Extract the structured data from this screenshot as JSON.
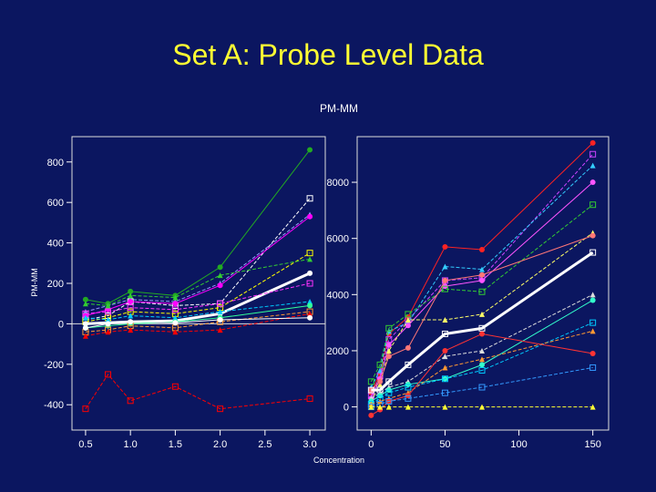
{
  "slide": {
    "title": "Set A: Probe Level Data",
    "subtitle": "PM-MM",
    "xlabel": "Concentration",
    "ylabel": "PM-MM"
  },
  "chart_data": [
    {
      "type": "line",
      "title": "",
      "xlabel": "",
      "ylabel": "PM-MM",
      "x": [
        0.5,
        0.75,
        1.0,
        1.5,
        2.0,
        3.0
      ],
      "xticks": [
        "0.5",
        "1.0",
        "1.5",
        "2.0",
        "2.5",
        "3.0"
      ],
      "yticks": [
        "-400",
        "-200",
        "0",
        "200",
        "400",
        "600",
        "800"
      ],
      "xlim": [
        0.45,
        3.05
      ],
      "ylim": [
        -480,
        880
      ],
      "series": [
        {
          "color": "#22aa22",
          "values": [
            120,
            100,
            160,
            140,
            280,
            860
          ]
        },
        {
          "color": "#ffffff",
          "values": [
            20,
            40,
            110,
            90,
            100,
            620
          ]
        },
        {
          "color": "#9999ff",
          "values": [
            60,
            90,
            120,
            110,
            200,
            540
          ]
        },
        {
          "color": "#ff00ff",
          "values": [
            40,
            70,
            110,
            100,
            190,
            530
          ]
        },
        {
          "color": "#ffff00",
          "values": [
            10,
            30,
            60,
            50,
            80,
            350
          ]
        },
        {
          "color": "#33cc33",
          "values": [
            100,
            90,
            140,
            130,
            240,
            320
          ]
        },
        {
          "color": "#ffffff",
          "values": [
            0,
            5,
            10,
            15,
            50,
            250
          ]
        },
        {
          "color": "#ff33ff",
          "values": [
            50,
            60,
            80,
            70,
            100,
            200
          ]
        },
        {
          "color": "#00ccff",
          "values": [
            30,
            20,
            40,
            30,
            60,
            110
          ]
        },
        {
          "color": "#33ff99",
          "values": [
            -20,
            -10,
            0,
            10,
            30,
            90
          ]
        },
        {
          "color": "#ff9933",
          "values": [
            -40,
            -30,
            -10,
            -20,
            10,
            60
          ]
        },
        {
          "color": "#ff0000",
          "values": [
            -60,
            -40,
            -30,
            -40,
            -30,
            50
          ]
        },
        {
          "color": "#ffffff",
          "values": [
            -20,
            0,
            10,
            5,
            20,
            30
          ]
        },
        {
          "color": "#ff0000",
          "values": [
            -420,
            -250,
            -380,
            -310,
            -420,
            -370
          ]
        }
      ]
    },
    {
      "type": "line",
      "title": "",
      "xlabel": "Concentration",
      "ylabel": "",
      "x": [
        0,
        6,
        12,
        25,
        50,
        75,
        150
      ],
      "xticks": [
        "0",
        "50",
        "100",
        "150"
      ],
      "yticks": [
        "0",
        "2000",
        "4000",
        "6000",
        "8000"
      ],
      "xlim": [
        -7,
        157
      ],
      "ylim": [
        -500,
        9300
      ],
      "series": [
        {
          "color": "#ff2222",
          "values": [
            500,
            1200,
            2600,
            3200,
            5700,
            5600,
            9400
          ]
        },
        {
          "color": "#cc44ff",
          "values": [
            400,
            1100,
            2400,
            3100,
            4500,
            4600,
            9000
          ]
        },
        {
          "color": "#33ccff",
          "values": [
            700,
            1300,
            2700,
            3000,
            5000,
            4900,
            8600
          ]
        },
        {
          "color": "#ff55ff",
          "values": [
            300,
            1000,
            2200,
            2900,
            4300,
            4500,
            8000
          ]
        },
        {
          "color": "#33cc33",
          "values": [
            900,
            1500,
            2800,
            3300,
            4200,
            4100,
            7200
          ]
        },
        {
          "color": "#ffff66",
          "values": [
            200,
            800,
            2000,
            3100,
            3100,
            3300,
            6200
          ]
        },
        {
          "color": "#ff7777",
          "values": [
            600,
            900,
            1800,
            2100,
            4500,
            4700,
            6100
          ]
        },
        {
          "color": "#ffffff",
          "values": [
            600,
            600,
            900,
            1500,
            2600,
            2800,
            5500
          ]
        },
        {
          "color": "#dddddd",
          "values": [
            300,
            500,
            700,
            900,
            1800,
            2000,
            4000
          ]
        },
        {
          "color": "#33ffcc",
          "values": [
            200,
            400,
            600,
            800,
            1000,
            1500,
            3800
          ]
        },
        {
          "color": "#00ccff",
          "values": [
            100,
            300,
            500,
            700,
            1000,
            1300,
            3000
          ]
        },
        {
          "color": "#ff9933",
          "values": [
            100,
            200,
            300,
            500,
            1400,
            1700,
            2700
          ]
        },
        {
          "color": "#ff3333",
          "values": [
            -300,
            -100,
            200,
            400,
            2000,
            2600,
            1900
          ]
        },
        {
          "color": "#3399ff",
          "values": [
            0,
            100,
            200,
            300,
            500,
            700,
            1400
          ]
        },
        {
          "color": "#ffff33",
          "values": [
            0,
            0,
            0,
            0,
            0,
            0,
            0
          ]
        }
      ]
    }
  ]
}
